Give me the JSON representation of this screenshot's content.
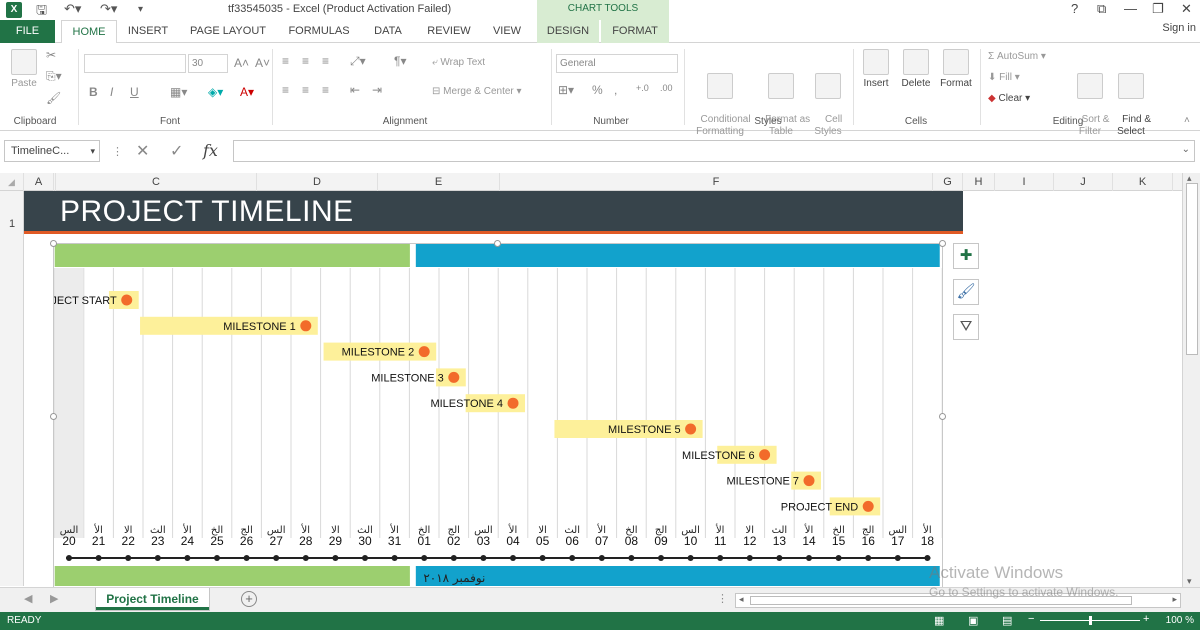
{
  "window": {
    "title": "tf33545035 - Excel (Product Activation Failed)",
    "context_tab_group": "CHART TOOLS",
    "help": "?",
    "controls": [
      "⧉",
      "—",
      "❐",
      "✕"
    ]
  },
  "tabs": [
    "FILE",
    "HOME",
    "INSERT",
    "PAGE LAYOUT",
    "FORMULAS",
    "DATA",
    "REVIEW",
    "VIEW",
    "DESIGN",
    "FORMAT"
  ],
  "signin": "Sign in",
  "ribbon": {
    "clipboard": {
      "label": "Clipboard",
      "paste": "Paste"
    },
    "font": {
      "label": "Font",
      "size": "30",
      "bold": "B",
      "italic": "I",
      "underline": "U"
    },
    "alignment": {
      "label": "Alignment",
      "wrap": "Wrap Text",
      "merge": "Merge & Center"
    },
    "number": {
      "label": "Number",
      "format": "General",
      "percent": "%"
    },
    "styles": {
      "label": "Styles",
      "cond": "Conditional\nFormatting",
      "table": "Format as\nTable",
      "cell": "Cell\nStyles"
    },
    "cells": {
      "label": "Cells",
      "insert": "Insert",
      "delete": "Delete",
      "format": "Format"
    },
    "editing": {
      "label": "Editing",
      "autosum": "AutoSum",
      "fill": "Fill",
      "clear": "Clear",
      "sort": "Sort &\nFilter",
      "find": "Find &\nSelect"
    }
  },
  "formula_bar": {
    "name_box": "TimelineC...",
    "fx": "fx",
    "value": ""
  },
  "columns": [
    "A",
    "B",
    "C",
    "D",
    "E",
    "F",
    "G",
    "H",
    "I",
    "J",
    "K"
  ],
  "rows": [
    "1"
  ],
  "sheet_title": "PROJECT TIMELINE",
  "chart_data": {
    "type": "scatter",
    "x_ticks": [
      "20",
      "21",
      "22",
      "23",
      "24",
      "25",
      "26",
      "27",
      "28",
      "29",
      "30",
      "31",
      "01",
      "02",
      "03",
      "04",
      "05",
      "06",
      "07",
      "08",
      "09",
      "10",
      "11",
      "12",
      "13",
      "14",
      "15",
      "16",
      "17",
      "18"
    ],
    "x_day_names": [
      "الس",
      "الأ",
      "الا",
      "الث",
      "الأ",
      "الخ",
      "الج",
      "الس",
      "الأ",
      "الا",
      "الث",
      "الأ",
      "الخ",
      "الج",
      "الس",
      "الأ",
      "الا",
      "الث",
      "الأ",
      "الخ",
      "الج",
      "الس",
      "الأ",
      "الا",
      "الث",
      "الأ",
      "الخ",
      "الج",
      "الس",
      "الأ"
    ],
    "month_label": "نوفمبر ٢٠١٨",
    "milestones": [
      {
        "label": "PROJECT START",
        "x": 1.95,
        "duration": 0.6
      },
      {
        "label": "MILESTONE 1",
        "x": 8.0,
        "duration": 5.6
      },
      {
        "label": "MILESTONE 2",
        "x": 12.0,
        "duration": 3.4
      },
      {
        "label": "MILESTONE 3",
        "x": 13.0,
        "duration": 0.6
      },
      {
        "label": "MILESTONE 4",
        "x": 15.0,
        "duration": 1.6
      },
      {
        "label": "MILESTONE 5",
        "x": 21.0,
        "duration": 4.6
      },
      {
        "label": "MILESTONE 6",
        "x": 23.5,
        "duration": 1.6
      },
      {
        "label": "MILESTONE 7",
        "x": 25.0,
        "duration": 0.6
      },
      {
        "label": "PROJECT END",
        "x": 27.0,
        "duration": 1.3
      }
    ],
    "bands": [
      {
        "start": -0.5,
        "end": 11.5,
        "color": "#9ccf6f"
      },
      {
        "start": 11.7,
        "end": 29.4,
        "color": "#12a2cc"
      }
    ],
    "colors": {
      "marker": "#f26b2a",
      "label_bg": "#fdf09a",
      "grid": "#d9d9d9",
      "axis": "#222222",
      "shade": "#ececec"
    }
  },
  "sheet_tab": "Project Timeline",
  "status": {
    "ready": "READY",
    "zoom": "100 %"
  },
  "watermark": {
    "line1": "Activate Windows",
    "line2": "Go to Settings to activate Windows."
  }
}
